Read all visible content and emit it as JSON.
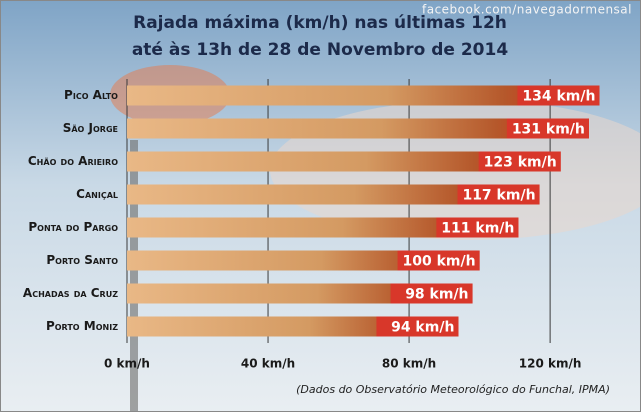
{
  "chart_data": {
    "type": "hbar",
    "title": "Rajada máxima (km/h) nas últimas 12h",
    "subtitle": "até às 13h de 28 de Novembro de 2014",
    "watermark": "facebook.com/navegadormensal",
    "source": "(Dados do Observatório Meteorológico do Funchal, IPMA)",
    "categories": [
      "Pico Alto",
      "São Jorge",
      "Chão do Arieiro",
      "Caniçal",
      "Ponta do Pargo",
      "Porto Santo",
      "Achadas da Cruz",
      "Porto Moniz"
    ],
    "values": [
      134,
      131,
      123,
      117,
      111,
      100,
      98,
      94
    ],
    "value_labels": [
      "134 km/h",
      "131 km/h",
      "123 km/h",
      "117 km/h",
      "111 km/h",
      "100 km/h",
      "98 km/h",
      "94 km/h"
    ],
    "color": "#d8372a",
    "xlim": [
      0,
      135
    ],
    "xticks": [
      {
        "value": 0,
        "label": "0 km/h"
      },
      {
        "value": 40,
        "label": "40 km/h"
      },
      {
        "value": 80,
        "label": "80 km/h"
      },
      {
        "value": 120,
        "label": "120 km/h"
      }
    ],
    "grid": true
  }
}
